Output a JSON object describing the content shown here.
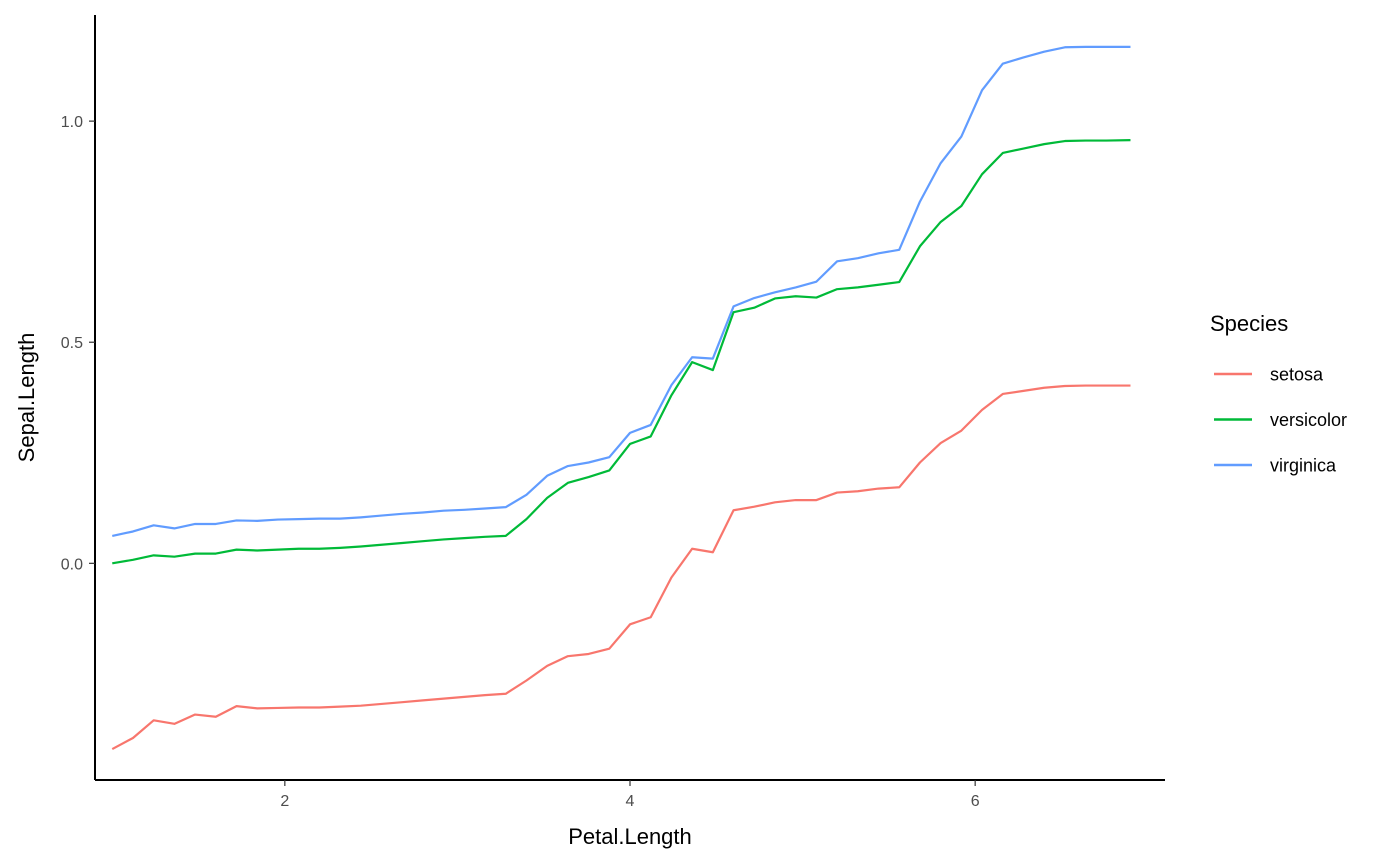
{
  "chart_data": {
    "type": "line",
    "xlabel": "Petal.Length",
    "ylabel": "Sepal.Length",
    "xlim": [
      0.9,
      7.1
    ],
    "ylim": [
      -0.49,
      1.24
    ],
    "x_ticks": [
      2,
      4,
      6
    ],
    "x_tick_labels": [
      "2",
      "4",
      "6"
    ],
    "y_ticks": [
      0.0,
      0.5,
      1.0
    ],
    "y_tick_labels": [
      "0.0",
      "0.5",
      "1.0"
    ],
    "grid": false,
    "legend": {
      "title": "Species",
      "position": "right"
    },
    "x": [
      1.0,
      1.12,
      1.24,
      1.36,
      1.48,
      1.6,
      1.72,
      1.84,
      1.96,
      2.08,
      2.2,
      2.32,
      2.44,
      2.56,
      2.68,
      2.8,
      2.92,
      3.04,
      3.16,
      3.28,
      3.4,
      3.52,
      3.64,
      3.76,
      3.88,
      4.0,
      4.12,
      4.24,
      4.36,
      4.48,
      4.6,
      4.72,
      4.84,
      4.96,
      5.08,
      5.2,
      5.32,
      5.44,
      5.56,
      5.68,
      5.8,
      5.92,
      6.04,
      6.16,
      6.28,
      6.4,
      6.52,
      6.64,
      6.76,
      6.9
    ],
    "series": [
      {
        "name": "setosa",
        "color": "#F8766D",
        "values": [
          -0.42,
          -0.395,
          -0.355,
          -0.363,
          -0.342,
          -0.347,
          -0.323,
          -0.328,
          -0.327,
          -0.326,
          -0.326,
          -0.324,
          -0.322,
          -0.318,
          -0.314,
          -0.31,
          -0.306,
          -0.302,
          -0.298,
          -0.295,
          -0.265,
          -0.232,
          -0.21,
          -0.205,
          -0.193,
          -0.138,
          -0.122,
          -0.032,
          0.033,
          0.025,
          0.12,
          0.128,
          0.138,
          0.143,
          0.143,
          0.16,
          0.163,
          0.169,
          0.172,
          0.228,
          0.272,
          0.3,
          0.347,
          0.383,
          0.39,
          0.397,
          0.401,
          0.402,
          0.402,
          0.402
        ]
      },
      {
        "name": "versicolor",
        "color": "#00BA38",
        "values": [
          0.0,
          0.008,
          0.018,
          0.015,
          0.022,
          0.022,
          0.031,
          0.029,
          0.031,
          0.033,
          0.033,
          0.035,
          0.038,
          0.042,
          0.046,
          0.05,
          0.054,
          0.057,
          0.06,
          0.062,
          0.1,
          0.148,
          0.182,
          0.195,
          0.21,
          0.27,
          0.287,
          0.38,
          0.455,
          0.437,
          0.568,
          0.578,
          0.599,
          0.604,
          0.601,
          0.62,
          0.624,
          0.63,
          0.636,
          0.717,
          0.772,
          0.808,
          0.88,
          0.928,
          0.938,
          0.948,
          0.955,
          0.956,
          0.956,
          0.957
        ]
      },
      {
        "name": "virginica",
        "color": "#619CFF",
        "values": [
          0.062,
          0.072,
          0.086,
          0.079,
          0.089,
          0.089,
          0.097,
          0.096,
          0.099,
          0.1,
          0.101,
          0.101,
          0.104,
          0.108,
          0.112,
          0.115,
          0.119,
          0.121,
          0.124,
          0.127,
          0.155,
          0.198,
          0.22,
          0.228,
          0.24,
          0.295,
          0.313,
          0.403,
          0.466,
          0.463,
          0.581,
          0.6,
          0.613,
          0.624,
          0.637,
          0.683,
          0.69,
          0.701,
          0.709,
          0.818,
          0.905,
          0.965,
          1.07,
          1.13,
          1.144,
          1.157,
          1.167,
          1.168,
          1.168,
          1.168
        ]
      }
    ]
  }
}
